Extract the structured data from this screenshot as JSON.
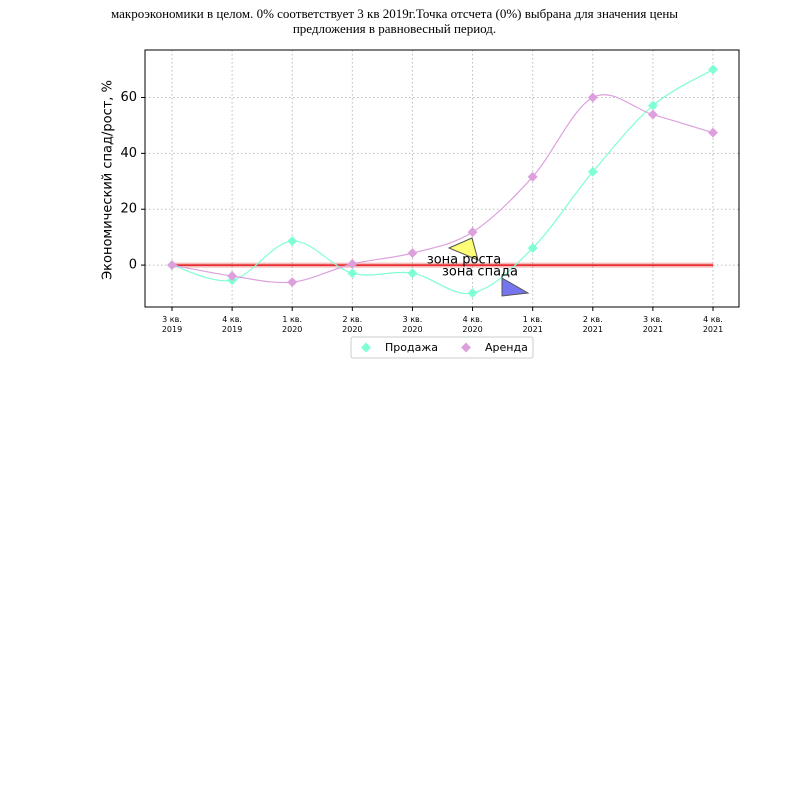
{
  "chart_data": {
    "type": "line",
    "caption": [
      "макроэкономики в целом. 0% соответствует 3 кв 2019г.Точка отсчета (0%) выбрана для значения цены",
      "предложения в равновесный период."
    ],
    "ylabel": "Экономический спад/рост, %",
    "categories": [
      "3 кв. 2019",
      "4 кв. 2019",
      "1 кв. 2020",
      "2 кв. 2020",
      "3 кв. 2020",
      "4 кв. 2020",
      "1 кв. 2021",
      "2 кв. 2021",
      "3 кв. 2021",
      "4 кв. 2021"
    ],
    "series": [
      {
        "name": "Продажа",
        "color": "#7fffd4",
        "values": [
          0,
          -5.4,
          8.6,
          -2.9,
          -2.9,
          -10,
          6.1,
          33.4,
          57.1,
          70
        ]
      },
      {
        "name": "Аренда",
        "color": "#dda0dd",
        "values": [
          0,
          -3.9,
          -6.1,
          0.4,
          4.3,
          11.8,
          31.6,
          60,
          53.9,
          47.4
        ]
      }
    ],
    "baseline": {
      "value": 0,
      "color": "#e41a1c"
    },
    "annotations": [
      {
        "text": "зона роста",
        "color": "#ffff66"
      },
      {
        "text": "зона спада",
        "color": "#6666ee"
      }
    ],
    "ylim": [
      -15,
      77
    ],
    "yticks": [
      0,
      20,
      40,
      60
    ],
    "grid": true,
    "legend": "bottom"
  }
}
